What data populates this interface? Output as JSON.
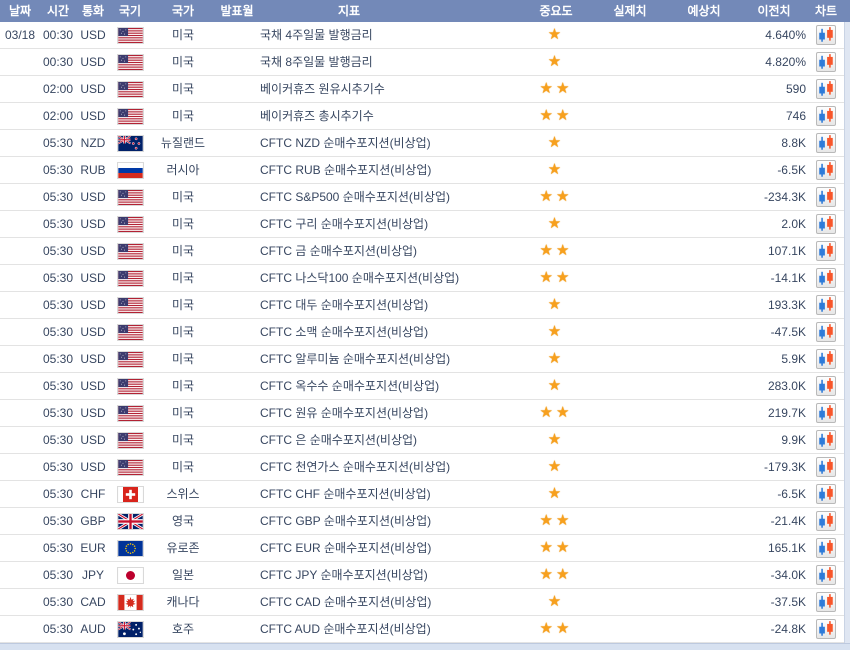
{
  "table": {
    "columns": [
      {
        "key": "date",
        "label": "날짜"
      },
      {
        "key": "time",
        "label": "시간"
      },
      {
        "key": "currency",
        "label": "통화"
      },
      {
        "key": "flag",
        "label": "국기"
      },
      {
        "key": "country",
        "label": "국가"
      },
      {
        "key": "month",
        "label": "발표월"
      },
      {
        "key": "indicator",
        "label": "지표"
      },
      {
        "key": "importance",
        "label": "중요도"
      },
      {
        "key": "actual",
        "label": "실제치"
      },
      {
        "key": "forecast",
        "label": "예상치"
      },
      {
        "key": "previous",
        "label": "이전치"
      },
      {
        "key": "chart",
        "label": "차트"
      }
    ],
    "rows": [
      {
        "date": "03/18",
        "time": "00:30",
        "currency": "USD",
        "flag": "us",
        "country": "미국",
        "month": "",
        "indicator": "국채 4주일물 발행금리",
        "importance": 1,
        "actual": "",
        "forecast": "",
        "previous": "4.640%"
      },
      {
        "date": "",
        "time": "00:30",
        "currency": "USD",
        "flag": "us",
        "country": "미국",
        "month": "",
        "indicator": "국채 8주일물 발행금리",
        "importance": 1,
        "actual": "",
        "forecast": "",
        "previous": "4.820%"
      },
      {
        "date": "",
        "time": "02:00",
        "currency": "USD",
        "flag": "us",
        "country": "미국",
        "month": "",
        "indicator": "베이커휴즈 원유시추기수",
        "importance": 2,
        "actual": "",
        "forecast": "",
        "previous": "590"
      },
      {
        "date": "",
        "time": "02:00",
        "currency": "USD",
        "flag": "us",
        "country": "미국",
        "month": "",
        "indicator": "베이커휴즈 총시추기수",
        "importance": 2,
        "actual": "",
        "forecast": "",
        "previous": "746"
      },
      {
        "date": "",
        "time": "05:30",
        "currency": "NZD",
        "flag": "nz",
        "country": "뉴질랜드",
        "month": "",
        "indicator": "CFTC NZD 순매수포지션(비상업)",
        "importance": 1,
        "actual": "",
        "forecast": "",
        "previous": "8.8K"
      },
      {
        "date": "",
        "time": "05:30",
        "currency": "RUB",
        "flag": "ru",
        "country": "러시아",
        "month": "",
        "indicator": "CFTC RUB 순매수포지션(비상업)",
        "importance": 1,
        "actual": "",
        "forecast": "",
        "previous": "-6.5K"
      },
      {
        "date": "",
        "time": "05:30",
        "currency": "USD",
        "flag": "us",
        "country": "미국",
        "month": "",
        "indicator": "CFTC S&P500 순매수포지션(비상업)",
        "importance": 2,
        "actual": "",
        "forecast": "",
        "previous": "-234.3K"
      },
      {
        "date": "",
        "time": "05:30",
        "currency": "USD",
        "flag": "us",
        "country": "미국",
        "month": "",
        "indicator": "CFTC 구리 순매수포지션(비상업)",
        "importance": 1,
        "actual": "",
        "forecast": "",
        "previous": "2.0K"
      },
      {
        "date": "",
        "time": "05:30",
        "currency": "USD",
        "flag": "us",
        "country": "미국",
        "month": "",
        "indicator": "CFTC 금 순매수포지션(비상업)",
        "importance": 2,
        "actual": "",
        "forecast": "",
        "previous": "107.1K"
      },
      {
        "date": "",
        "time": "05:30",
        "currency": "USD",
        "flag": "us",
        "country": "미국",
        "month": "",
        "indicator": "CFTC 나스닥100 순매수포지션(비상업)",
        "importance": 2,
        "actual": "",
        "forecast": "",
        "previous": "-14.1K"
      },
      {
        "date": "",
        "time": "05:30",
        "currency": "USD",
        "flag": "us",
        "country": "미국",
        "month": "",
        "indicator": "CFTC 대두 순매수포지션(비상업)",
        "importance": 1,
        "actual": "",
        "forecast": "",
        "previous": "193.3K"
      },
      {
        "date": "",
        "time": "05:30",
        "currency": "USD",
        "flag": "us",
        "country": "미국",
        "month": "",
        "indicator": "CFTC 소맥 순매수포지션(비상업)",
        "importance": 1,
        "actual": "",
        "forecast": "",
        "previous": "-47.5K"
      },
      {
        "date": "",
        "time": "05:30",
        "currency": "USD",
        "flag": "us",
        "country": "미국",
        "month": "",
        "indicator": "CFTC 알루미늄 순매수포지션(비상업)",
        "importance": 1,
        "actual": "",
        "forecast": "",
        "previous": "5.9K"
      },
      {
        "date": "",
        "time": "05:30",
        "currency": "USD",
        "flag": "us",
        "country": "미국",
        "month": "",
        "indicator": "CFTC 옥수수 순매수포지션(비상업)",
        "importance": 1,
        "actual": "",
        "forecast": "",
        "previous": "283.0K"
      },
      {
        "date": "",
        "time": "05:30",
        "currency": "USD",
        "flag": "us",
        "country": "미국",
        "month": "",
        "indicator": "CFTC 원유 순매수포지션(비상업)",
        "importance": 2,
        "actual": "",
        "forecast": "",
        "previous": "219.7K"
      },
      {
        "date": "",
        "time": "05:30",
        "currency": "USD",
        "flag": "us",
        "country": "미국",
        "month": "",
        "indicator": "CFTC 은 순매수포지션(비상업)",
        "importance": 1,
        "actual": "",
        "forecast": "",
        "previous": "9.9K"
      },
      {
        "date": "",
        "time": "05:30",
        "currency": "USD",
        "flag": "us",
        "country": "미국",
        "month": "",
        "indicator": "CFTC 천연가스 순매수포지션(비상업)",
        "importance": 1,
        "actual": "",
        "forecast": "",
        "previous": "-179.3K"
      },
      {
        "date": "",
        "time": "05:30",
        "currency": "CHF",
        "flag": "ch",
        "country": "스위스",
        "month": "",
        "indicator": "CFTC CHF 순매수포지션(비상업)",
        "importance": 1,
        "actual": "",
        "forecast": "",
        "previous": "-6.5K"
      },
      {
        "date": "",
        "time": "05:30",
        "currency": "GBP",
        "flag": "gb",
        "country": "영국",
        "month": "",
        "indicator": "CFTC GBP 순매수포지션(비상업)",
        "importance": 2,
        "actual": "",
        "forecast": "",
        "previous": "-21.4K"
      },
      {
        "date": "",
        "time": "05:30",
        "currency": "EUR",
        "flag": "eu",
        "country": "유로존",
        "month": "",
        "indicator": "CFTC EUR 순매수포지션(비상업)",
        "importance": 2,
        "actual": "",
        "forecast": "",
        "previous": "165.1K"
      },
      {
        "date": "",
        "time": "05:30",
        "currency": "JPY",
        "flag": "jp",
        "country": "일본",
        "month": "",
        "indicator": "CFTC JPY 순매수포지션(비상업)",
        "importance": 2,
        "actual": "",
        "forecast": "",
        "previous": "-34.0K"
      },
      {
        "date": "",
        "time": "05:30",
        "currency": "CAD",
        "flag": "ca",
        "country": "캐나다",
        "month": "",
        "indicator": "CFTC CAD 순매수포지션(비상업)",
        "importance": 1,
        "actual": "",
        "forecast": "",
        "previous": "-37.5K"
      },
      {
        "date": "",
        "time": "05:30",
        "currency": "AUD",
        "flag": "au",
        "country": "호주",
        "month": "",
        "indicator": "CFTC AUD 순매수포지션(비상업)",
        "importance": 2,
        "actual": "",
        "forecast": "",
        "previous": "-24.8K"
      }
    ]
  },
  "icons": {
    "star": "star-icon",
    "chart": "candlestick-chart-icon",
    "star_glyph": "★"
  },
  "colors": {
    "header_bg": "#7389b8",
    "header_text": "#ffffff",
    "row_text": "#374660",
    "star": "#f7a01e",
    "candle_blue": "#2e7bd9",
    "candle_orange": "#f8562a",
    "gutter": "#d7e1f0",
    "row_border": "#e3e3e3"
  }
}
